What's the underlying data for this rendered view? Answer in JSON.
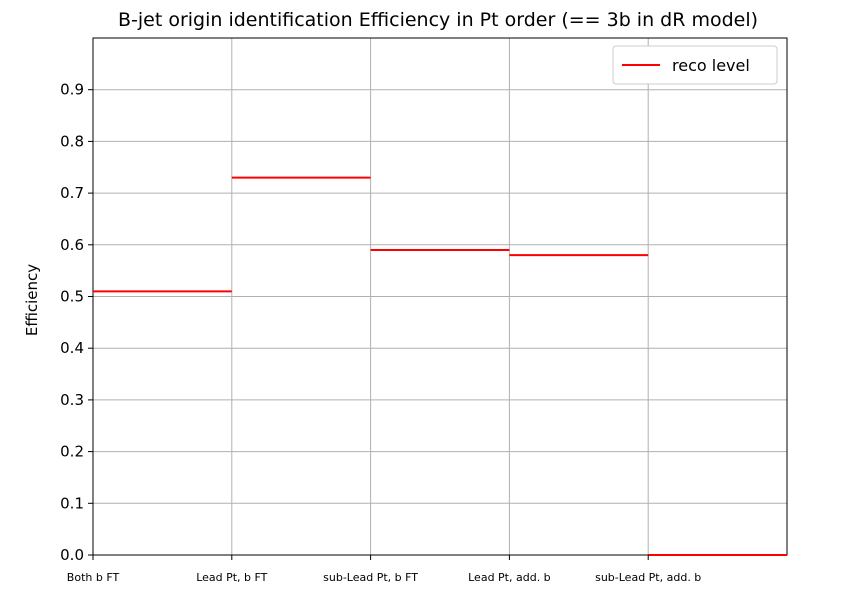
{
  "chart_data": {
    "type": "step",
    "title": "B-jet origin identification Efficiency in Pt order (== 3b in dR model)",
    "xlabel": "",
    "ylabel": "Efficiency",
    "categories": [
      "Both b FT",
      "Lead Pt, b FT",
      "sub-Lead Pt, b FT",
      "Lead Pt, add. b",
      "sub-Lead Pt, add. b"
    ],
    "xlim": [
      0,
      5
    ],
    "ylim": [
      0,
      1.0
    ],
    "yticks": [
      "0.0",
      "0.1",
      "0.2",
      "0.3",
      "0.4",
      "0.5",
      "0.6",
      "0.7",
      "0.8",
      "0.9"
    ],
    "grid": true,
    "legend_position": "upper right",
    "series": [
      {
        "name": "reco level",
        "color": "#ff0000",
        "values": [
          0.51,
          0.73,
          0.59,
          0.58,
          0.0
        ]
      }
    ]
  }
}
